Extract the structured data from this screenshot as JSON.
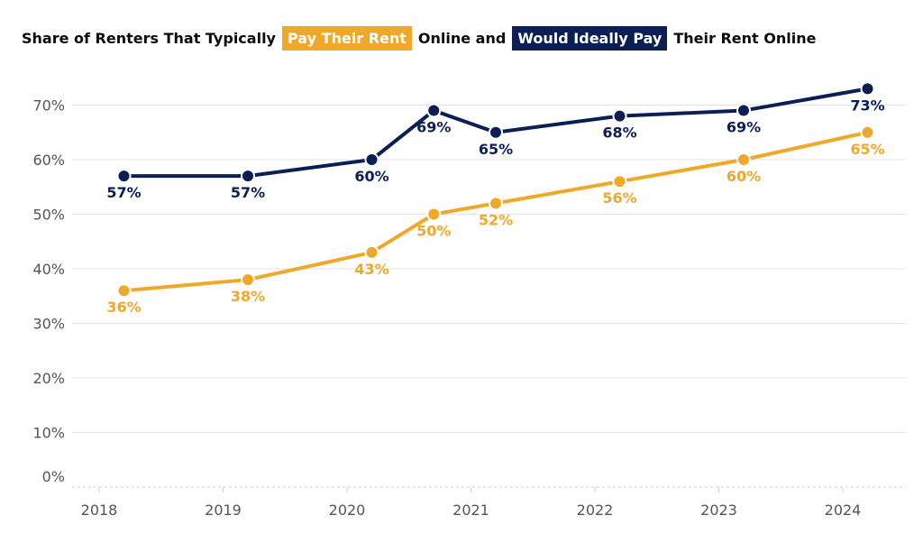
{
  "title": {
    "part1": "Share of Renters That Typically",
    "highlight1": "Pay Their Rent",
    "part2": "Online and",
    "highlight2": "Would Ideally Pay",
    "part3": "Their Rent Online"
  },
  "colors": {
    "pay": "#F0A82A",
    "ideal": "#0C1F55",
    "grid": "#e3e3e3",
    "axis": "#cfcfcf"
  },
  "chart_data": {
    "type": "line",
    "y_ticks": [
      "0%",
      "10%",
      "20%",
      "30%",
      "40%",
      "50%",
      "60%",
      "70%"
    ],
    "x_ticks": [
      "2018",
      "2019",
      "2020",
      "2021",
      "2022",
      "2023",
      "2024"
    ],
    "xlim": [
      2018,
      2024.5
    ],
    "ylim": [
      0,
      70
    ],
    "grid": true,
    "series": [
      {
        "name": "Would Ideally Pay",
        "color": "#0C1F55",
        "x": [
          2018.2,
          2019.2,
          2020.2,
          2020.7,
          2021.2,
          2022.2,
          2023.2,
          2024.2
        ],
        "y": [
          57,
          57,
          60,
          69,
          65,
          68,
          69,
          73
        ],
        "labels": [
          "57%",
          "57%",
          "60%",
          "69%",
          "65%",
          "68%",
          "69%",
          "73%"
        ]
      },
      {
        "name": "Pay Their Rent",
        "color": "#F0A82A",
        "x": [
          2018.2,
          2019.2,
          2020.2,
          2020.7,
          2021.2,
          2022.2,
          2023.2,
          2024.2
        ],
        "y": [
          36,
          38,
          43,
          50,
          52,
          56,
          60,
          65
        ],
        "labels": [
          "36%",
          "38%",
          "43%",
          "50%",
          "52%",
          "56%",
          "60%",
          "65%"
        ]
      }
    ]
  }
}
